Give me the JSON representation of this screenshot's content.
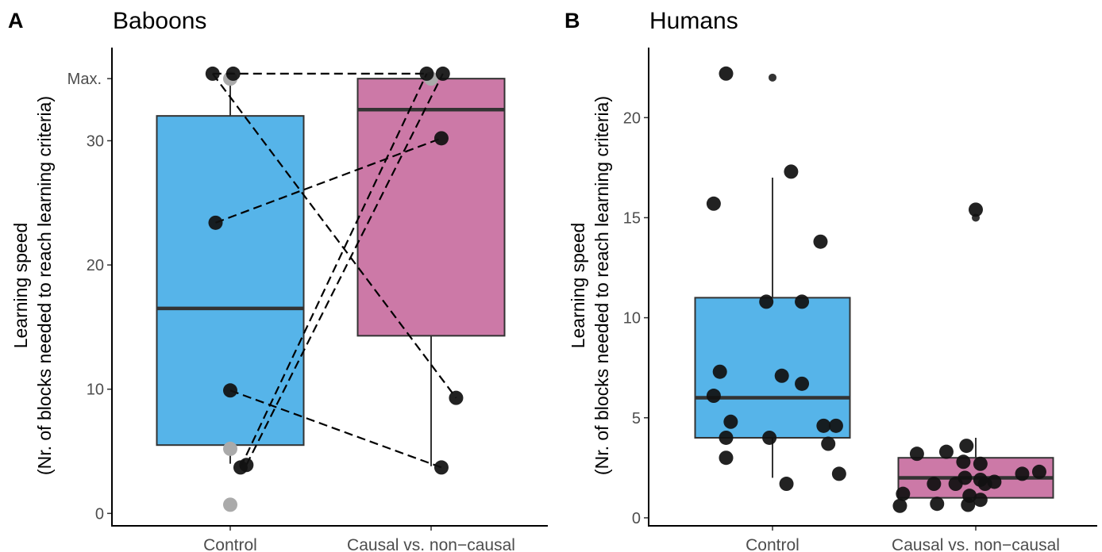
{
  "chart_data": [
    {
      "type": "boxplot",
      "panel_label": "A",
      "title": "Baboons",
      "ylabel_line1": "Learning speed",
      "ylabel_line2": "(Nr. of blocks needed to reach learning criteria)",
      "categories": [
        "Control",
        "Causal vs. non−causal"
      ],
      "y_ticks": [
        0,
        10,
        20,
        30
      ],
      "y_max_label": "Max.",
      "y_max_value": 35,
      "ylim": [
        -1,
        37.5
      ],
      "colors": {
        "box": [
          "#56b4e9",
          "#cc79a7"
        ],
        "point": "#111111",
        "grey_point": "#aaaaaa"
      },
      "boxes": [
        {
          "category": "Control",
          "q1": 5.5,
          "median": 16.5,
          "q3": 32,
          "whisker_low": 4,
          "whisker_high": 35
        },
        {
          "category": "Causal vs. non−causal",
          "q1": 14.3,
          "median": 32.5,
          "q3": 35,
          "whisker_low": 3.8,
          "whisker_high": 35
        }
      ],
      "outliers": [
        {
          "category": "Control",
          "y": 35
        },
        {
          "category": "Control",
          "y": 5.2
        },
        {
          "category": "Control",
          "y": 0.7
        },
        {
          "category": "Causal vs. non−causal",
          "y": 35
        }
      ],
      "paired_lines": [
        {
          "control": 35.4,
          "causal": 35.4
        },
        {
          "control": 35.4,
          "causal": 9.3
        },
        {
          "control": 23.4,
          "causal": 30.2
        },
        {
          "control": 9.9,
          "causal": 3.7
        },
        {
          "control": 3.7,
          "causal": 35.4
        },
        {
          "control": 3.9,
          "causal": 35.4
        }
      ],
      "points": [
        {
          "category": "Control",
          "jitter": -0.12,
          "y": 35.4
        },
        {
          "category": "Control",
          "jitter": 0.02,
          "y": 35.4
        },
        {
          "category": "Control",
          "jitter": -0.1,
          "y": 23.4
        },
        {
          "category": "Control",
          "jitter": 0.0,
          "y": 9.9
        },
        {
          "category": "Control",
          "jitter": 0.07,
          "y": 3.7
        },
        {
          "category": "Control",
          "jitter": 0.11,
          "y": 3.9
        },
        {
          "category": "Causal vs. non−causal",
          "jitter": -0.03,
          "y": 35.4
        },
        {
          "category": "Causal vs. non−causal",
          "jitter": 0.08,
          "y": 35.4
        },
        {
          "category": "Causal vs. non−causal",
          "jitter": 0.07,
          "y": 30.2
        },
        {
          "category": "Causal vs. non−causal",
          "jitter": 0.17,
          "y": 9.3
        },
        {
          "category": "Causal vs. non−causal",
          "jitter": 0.07,
          "y": 3.7
        }
      ]
    },
    {
      "type": "boxplot",
      "panel_label": "B",
      "title": "Humans",
      "ylabel_line1": "Learning speed",
      "ylabel_line2": "(Nr. of blocks needed to reach learning criteria)",
      "categories": [
        "Control",
        "Causal vs. non−causal"
      ],
      "y_ticks": [
        0,
        5,
        10,
        15,
        20
      ],
      "ylim": [
        -0.4,
        23.5
      ],
      "colors": {
        "box": [
          "#56b4e9",
          "#cc79a7"
        ],
        "point": "#111111"
      },
      "boxes": [
        {
          "category": "Control",
          "q1": 4,
          "median": 6,
          "q3": 11,
          "whisker_low": 2,
          "whisker_high": 17
        },
        {
          "category": "Causal vs. non−causal",
          "q1": 1,
          "median": 2,
          "q3": 3,
          "whisker_low": 1,
          "whisker_high": 4
        }
      ],
      "outliers": [
        {
          "category": "Control",
          "y": 22
        },
        {
          "category": "Causal vs. non−causal",
          "y": 15
        }
      ],
      "points": [
        {
          "category": "Control",
          "jitter": -0.3,
          "y": 22.2
        },
        {
          "category": "Control",
          "jitter": 0.12,
          "y": 17.3
        },
        {
          "category": "Control",
          "jitter": -0.38,
          "y": 15.7
        },
        {
          "category": "Control",
          "jitter": 0.31,
          "y": 13.8
        },
        {
          "category": "Control",
          "jitter": -0.04,
          "y": 10.8
        },
        {
          "category": "Control",
          "jitter": 0.19,
          "y": 10.8
        },
        {
          "category": "Control",
          "jitter": -0.34,
          "y": 7.3
        },
        {
          "category": "Control",
          "jitter": 0.06,
          "y": 7.1
        },
        {
          "category": "Control",
          "jitter": 0.19,
          "y": 6.7
        },
        {
          "category": "Control",
          "jitter": -0.38,
          "y": 6.1
        },
        {
          "category": "Control",
          "jitter": -0.27,
          "y": 4.8
        },
        {
          "category": "Control",
          "jitter": 0.41,
          "y": 4.6
        },
        {
          "category": "Control",
          "jitter": 0.33,
          "y": 4.6
        },
        {
          "category": "Control",
          "jitter": -0.3,
          "y": 4.0
        },
        {
          "category": "Control",
          "jitter": -0.02,
          "y": 4.0
        },
        {
          "category": "Control",
          "jitter": 0.36,
          "y": 3.7
        },
        {
          "category": "Control",
          "jitter": -0.3,
          "y": 3.0
        },
        {
          "category": "Control",
          "jitter": 0.43,
          "y": 2.2
        },
        {
          "category": "Control",
          "jitter": 0.09,
          "y": 1.7
        },
        {
          "category": "Causal vs. non−causal",
          "jitter": 0.0,
          "y": 15.4
        },
        {
          "category": "Causal vs. non−causal",
          "jitter": -0.38,
          "y": 3.2
        },
        {
          "category": "Causal vs. non−causal",
          "jitter": -0.19,
          "y": 3.3
        },
        {
          "category": "Causal vs. non−causal",
          "jitter": -0.06,
          "y": 3.6
        },
        {
          "category": "Causal vs. non−causal",
          "jitter": -0.08,
          "y": 2.8
        },
        {
          "category": "Causal vs. non−causal",
          "jitter": 0.03,
          "y": 2.7
        },
        {
          "category": "Causal vs. non−causal",
          "jitter": -0.27,
          "y": 1.7
        },
        {
          "category": "Causal vs. non−causal",
          "jitter": -0.13,
          "y": 1.7
        },
        {
          "category": "Causal vs. non−causal",
          "jitter": -0.07,
          "y": 2.0
        },
        {
          "category": "Causal vs. non−causal",
          "jitter": 0.03,
          "y": 1.9
        },
        {
          "category": "Causal vs. non−causal",
          "jitter": 0.06,
          "y": 1.7
        },
        {
          "category": "Causal vs. non−causal",
          "jitter": 0.12,
          "y": 1.8
        },
        {
          "category": "Causal vs. non−causal",
          "jitter": 0.3,
          "y": 2.2
        },
        {
          "category": "Causal vs. non−causal",
          "jitter": 0.41,
          "y": 2.3
        },
        {
          "category": "Causal vs. non−causal",
          "jitter": -0.47,
          "y": 1.2
        },
        {
          "category": "Causal vs. non−causal",
          "jitter": -0.25,
          "y": 0.7
        },
        {
          "category": "Causal vs. non−causal",
          "jitter": -0.04,
          "y": 1.1
        },
        {
          "category": "Causal vs. non−causal",
          "jitter": 0.03,
          "y": 0.9
        },
        {
          "category": "Causal vs. non−causal",
          "jitter": -0.05,
          "y": 0.65
        },
        {
          "category": "Causal vs. non−causal",
          "jitter": -0.49,
          "y": 0.6
        }
      ]
    }
  ]
}
